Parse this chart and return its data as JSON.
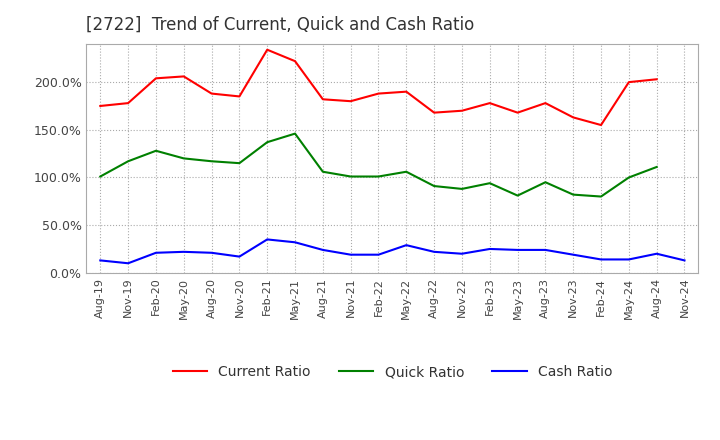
{
  "title": "[2722]  Trend of Current, Quick and Cash Ratio",
  "title_fontsize": 12,
  "xlabels": [
    "Aug-19",
    "Nov-19",
    "Feb-20",
    "May-20",
    "Aug-20",
    "Nov-20",
    "Feb-21",
    "May-21",
    "Aug-21",
    "Nov-21",
    "Feb-22",
    "May-22",
    "Aug-22",
    "Nov-22",
    "Feb-23",
    "May-23",
    "Aug-23",
    "Nov-23",
    "Feb-24",
    "May-24",
    "Aug-24",
    "Nov-24"
  ],
  "ylim": [
    0,
    240
  ],
  "yticks": [
    0,
    50,
    100,
    150,
    200
  ],
  "yticklabels": [
    "0.0%",
    "50.0%",
    "100.0%",
    "150.0%",
    "200.0%"
  ],
  "current_ratio": [
    175,
    178,
    204,
    206,
    188,
    185,
    234,
    222,
    182,
    180,
    188,
    190,
    168,
    170,
    178,
    168,
    178,
    163,
    155,
    200,
    203,
    null
  ],
  "quick_ratio": [
    101,
    117,
    128,
    120,
    117,
    115,
    137,
    146,
    106,
    101,
    101,
    106,
    91,
    88,
    94,
    81,
    95,
    82,
    80,
    100,
    111,
    null
  ],
  "cash_ratio": [
    13,
    10,
    21,
    22,
    21,
    17,
    35,
    32,
    24,
    19,
    19,
    29,
    22,
    20,
    25,
    24,
    24,
    19,
    14,
    14,
    20,
    13
  ],
  "current_color": "#ff0000",
  "quick_color": "#008000",
  "cash_color": "#0000ff",
  "line_width": 1.5,
  "background_color": "#ffffff",
  "grid_color": "#aaaaaa",
  "legend_labels": [
    "Current Ratio",
    "Quick Ratio",
    "Cash Ratio"
  ]
}
